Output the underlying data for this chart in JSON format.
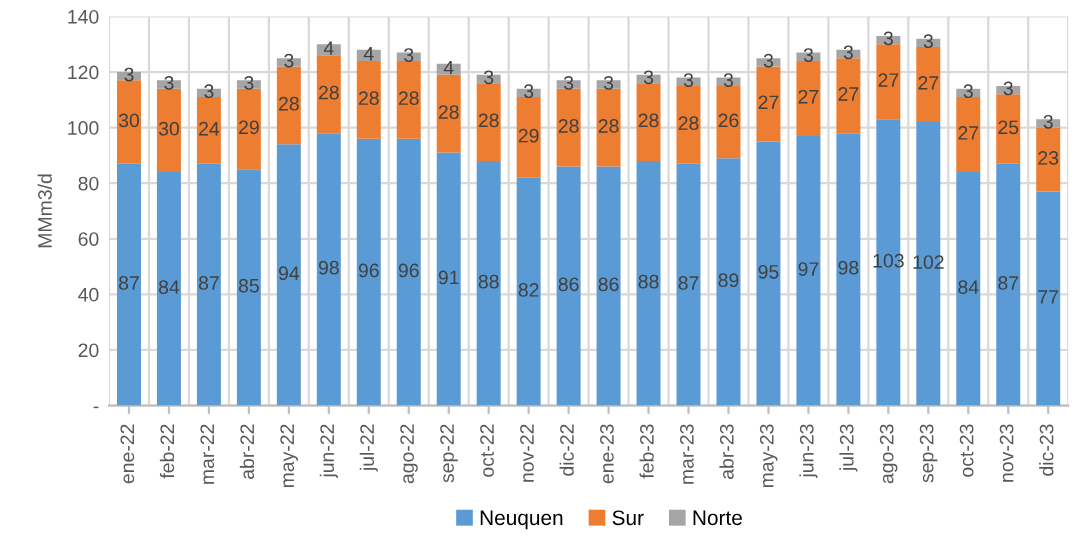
{
  "chart_data": {
    "type": "bar",
    "stacked": true,
    "ylabel": "MMm3/d",
    "categories": [
      "ene-22",
      "feb-22",
      "mar-22",
      "abr-22",
      "may-22",
      "jun-22",
      "jul-22",
      "ago-22",
      "sep-22",
      "oct-22",
      "nov-22",
      "dic-22",
      "ene-23",
      "feb-23",
      "mar-23",
      "abr-23",
      "may-23",
      "jun-23",
      "jul-23",
      "ago-23",
      "sep-23",
      "oct-23",
      "nov-23",
      "dic-23"
    ],
    "series": [
      {
        "name": "Neuquen",
        "color": "#5b9bd5",
        "values": [
          87,
          84,
          87,
          85,
          94,
          98,
          96,
          96,
          91,
          88,
          82,
          86,
          86,
          88,
          87,
          89,
          95,
          97,
          98,
          103,
          102,
          84,
          87,
          77
        ]
      },
      {
        "name": "Sur",
        "color": "#ed7d31",
        "values": [
          30,
          30,
          24,
          29,
          28,
          28,
          28,
          28,
          28,
          28,
          29,
          28,
          28,
          28,
          28,
          26,
          27,
          27,
          27,
          27,
          27,
          27,
          25,
          23
        ]
      },
      {
        "name": "Norte",
        "color": "#a5a5a5",
        "values": [
          3,
          3,
          3,
          3,
          3,
          4,
          4,
          3,
          4,
          3,
          3,
          3,
          3,
          3,
          3,
          3,
          3,
          3,
          3,
          3,
          3,
          3,
          3,
          3
        ]
      }
    ],
    "ylim": [
      0,
      140
    ],
    "yticks": [
      {
        "value": 0,
        "label": "-"
      },
      20,
      40,
      60,
      80,
      100,
      120,
      140
    ],
    "data_labels": true,
    "grid": true,
    "legend": "bottom"
  }
}
